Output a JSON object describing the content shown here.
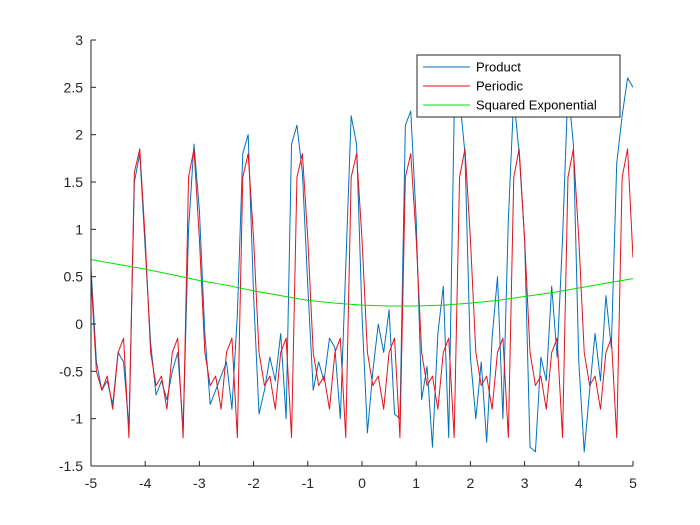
{
  "chart_data": {
    "type": "line",
    "title": "",
    "xlabel": "",
    "ylabel": "",
    "xlim": [
      -5,
      5
    ],
    "ylim": [
      -1.5,
      3
    ],
    "xticks": [
      "-5",
      "-4",
      "-3",
      "-2",
      "-1",
      "0",
      "1",
      "2",
      "3",
      "4",
      "5"
    ],
    "yticks": [
      "-1.5",
      "-1",
      "-0.5",
      "0",
      "0.5",
      "1",
      "1.5",
      "2",
      "2.5",
      "3"
    ],
    "grid": false,
    "legend_position": "top-right",
    "series": [
      {
        "name": "Product",
        "color": "#0072BD",
        "x": [
          -5,
          -4.9,
          -4.8,
          -4.7,
          -4.6,
          -4.5,
          -4.4,
          -4.3,
          -4.2,
          -4.1,
          -4.0,
          -3.9,
          -3.8,
          -3.7,
          -3.6,
          -3.5,
          -3.4,
          -3.3,
          -3.2,
          -3.1,
          -3.0,
          -2.9,
          -2.8,
          -2.7,
          -2.6,
          -2.5,
          -2.4,
          -2.3,
          -2.2,
          -2.1,
          -2.0,
          -1.9,
          -1.8,
          -1.7,
          -1.6,
          -1.5,
          -1.4,
          -1.3,
          -1.2,
          -1.1,
          -1.0,
          -0.9,
          -0.8,
          -0.7,
          -0.6,
          -0.5,
          -0.4,
          -0.3,
          -0.2,
          -0.1,
          0.0,
          0.1,
          0.2,
          0.3,
          0.4,
          0.5,
          0.6,
          0.7,
          0.8,
          0.9,
          1.0,
          1.1,
          1.2,
          1.3,
          1.4,
          1.5,
          1.6,
          1.7,
          1.8,
          1.9,
          2.0,
          2.1,
          2.2,
          2.3,
          2.4,
          2.5,
          2.6,
          2.7,
          2.8,
          2.9,
          3.0,
          3.1,
          3.2,
          3.3,
          3.4,
          3.5,
          3.6,
          3.7,
          3.8,
          3.9,
          4.0,
          4.1,
          4.2,
          4.3,
          4.4,
          4.5,
          4.6,
          4.7,
          4.8,
          4.9,
          5.0
        ],
        "values": [
          0.6,
          -0.4,
          -0.7,
          -0.6,
          -0.85,
          -0.3,
          -0.4,
          -1.1,
          1.5,
          1.8,
          0.8,
          -0.2,
          -0.75,
          -0.6,
          -0.8,
          -0.5,
          -0.3,
          -1.1,
          1.0,
          1.9,
          1.2,
          -0.1,
          -0.85,
          -0.7,
          -0.55,
          -0.4,
          -0.9,
          0.1,
          1.8,
          2.0,
          0.3,
          -0.95,
          -0.7,
          -0.35,
          -0.6,
          -0.1,
          -1.0,
          1.9,
          2.1,
          1.6,
          0.4,
          -0.7,
          -0.4,
          -0.6,
          -0.15,
          -0.25,
          -1.0,
          0.6,
          2.2,
          1.9,
          0.1,
          -1.15,
          -0.5,
          0.0,
          -0.3,
          0.15,
          -0.95,
          -1.0,
          2.1,
          2.25,
          1.1,
          -0.8,
          -0.45,
          -1.3,
          -0.1,
          0.4,
          -1.2,
          2.2,
          2.4,
          1.8,
          -0.35,
          -1.0,
          -0.4,
          -1.25,
          -0.15,
          0.5,
          -1.0,
          1.1,
          2.4,
          1.8,
          0.9,
          -1.3,
          -1.35,
          -0.35,
          -0.6,
          0.4,
          -0.35,
          0.9,
          2.5,
          1.9,
          -0.4,
          -1.35,
          -0.7,
          -0.1,
          -0.6,
          0.3,
          -0.25,
          1.7,
          2.2,
          2.6,
          2.5
        ]
      },
      {
        "name": "Periodic",
        "color": "#E3121B",
        "x": [
          -5,
          -4.9,
          -4.8,
          -4.7,
          -4.6,
          -4.5,
          -4.4,
          -4.3,
          -4.2,
          -4.1,
          -4.0,
          -3.9,
          -3.8,
          -3.7,
          -3.6,
          -3.5,
          -3.4,
          -3.3,
          -3.2,
          -3.1,
          -3.0,
          -2.9,
          -2.8,
          -2.7,
          -2.6,
          -2.5,
          -2.4,
          -2.3,
          -2.2,
          -2.1,
          -2.0,
          -1.9,
          -1.8,
          -1.7,
          -1.6,
          -1.5,
          -1.4,
          -1.3,
          -1.2,
          -1.1,
          -1.0,
          -0.9,
          -0.8,
          -0.7,
          -0.6,
          -0.5,
          -0.4,
          -0.3,
          -0.2,
          -0.1,
          0.0,
          0.1,
          0.2,
          0.3,
          0.4,
          0.5,
          0.6,
          0.7,
          0.8,
          0.9,
          1.0,
          1.1,
          1.2,
          1.3,
          1.4,
          1.5,
          1.6,
          1.7,
          1.8,
          1.9,
          2.0,
          2.1,
          2.2,
          2.3,
          2.4,
          2.5,
          2.6,
          2.7,
          2.8,
          2.9,
          3.0,
          3.1,
          3.2,
          3.3,
          3.4,
          3.5,
          3.6,
          3.7,
          3.8,
          3.9,
          4.0,
          4.1,
          4.2,
          4.3,
          4.4,
          4.5,
          4.6,
          4.7,
          4.8,
          4.9,
          5.0
        ],
        "values": [
          0.5,
          -0.5,
          -0.7,
          -0.55,
          -0.9,
          -0.3,
          -0.15,
          -1.2,
          1.6,
          1.85,
          0.9,
          -0.3,
          -0.65,
          -0.55,
          -0.9,
          -0.3,
          -0.15,
          -1.2,
          1.55,
          1.85,
          0.9,
          -0.3,
          -0.65,
          -0.55,
          -0.9,
          -0.3,
          -0.15,
          -1.2,
          1.55,
          1.8,
          0.9,
          -0.3,
          -0.65,
          -0.55,
          -0.9,
          -0.3,
          -0.15,
          -1.2,
          1.55,
          1.8,
          0.9,
          -0.3,
          -0.65,
          -0.55,
          -0.9,
          -0.3,
          -0.15,
          -1.2,
          1.55,
          1.8,
          0.9,
          -0.3,
          -0.65,
          -0.55,
          -0.9,
          -0.3,
          -0.15,
          -1.2,
          1.55,
          1.8,
          0.9,
          -0.3,
          -0.65,
          -0.55,
          -0.9,
          -0.3,
          -0.15,
          -1.2,
          1.55,
          1.85,
          0.9,
          -0.3,
          -0.65,
          -0.55,
          -0.9,
          -0.3,
          -0.15,
          -1.2,
          1.55,
          1.85,
          0.9,
          -0.3,
          -0.65,
          -0.55,
          -0.9,
          -0.3,
          -0.15,
          -1.2,
          1.55,
          1.85,
          0.9,
          -0.3,
          -0.65,
          -0.55,
          -0.9,
          -0.3,
          -0.15,
          -1.2,
          1.55,
          1.85,
          0.7
        ]
      },
      {
        "name": "Squared Exponential",
        "color": "#00E000",
        "x": [
          -5,
          -4.5,
          -4,
          -3.5,
          -3,
          -2.5,
          -2,
          -1.5,
          -1,
          -0.5,
          0,
          0.5,
          1,
          1.5,
          2,
          2.5,
          3,
          3.5,
          4,
          4.5,
          5
        ],
        "values": [
          0.68,
          0.63,
          0.58,
          0.52,
          0.46,
          0.41,
          0.35,
          0.3,
          0.25,
          0.22,
          0.2,
          0.19,
          0.19,
          0.2,
          0.22,
          0.25,
          0.29,
          0.33,
          0.38,
          0.43,
          0.48
        ]
      }
    ]
  }
}
